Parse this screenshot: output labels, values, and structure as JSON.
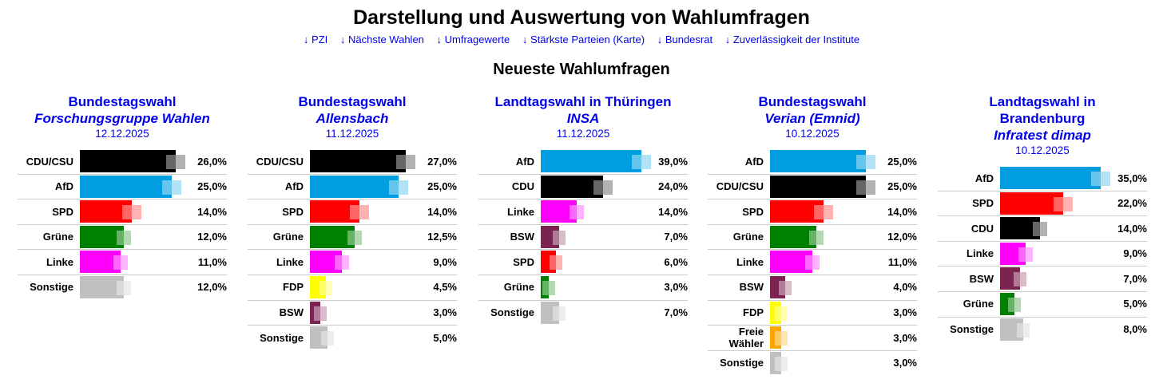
{
  "title": "Darstellung und Auswertung von Wahlumfragen",
  "nav": [
    "↓ PZI",
    "↓ Nächste Wahlen",
    "↓ Umfragewerte",
    "↓ Stärkste Parteien (Karte)",
    "↓ Bundesrat",
    "↓ Zuverlässigkeit der Institute"
  ],
  "subtitle": "Neueste Wahlumfragen",
  "colors": {
    "CDU/CSU": "#000000",
    "CDU": "#000000",
    "AfD": "#009ee0",
    "SPD": "#ff0000",
    "Grüne": "#008000",
    "Linke": "#ff00ff",
    "BSW": "#7b2450",
    "FDP": "#ffff00",
    "Freie Wähler": "#ffa500",
    "Sonstige": "#c0c0c0"
  },
  "polls": [
    {
      "election": "Bundestagswahl",
      "institute": "Forschungsgruppe Wahlen",
      "date": "12.12.2025",
      "results": [
        [
          "CDU/CSU",
          26.0,
          "26,0%"
        ],
        [
          "AfD",
          25.0,
          "25,0%"
        ],
        [
          "SPD",
          14.0,
          "14,0%"
        ],
        [
          "Grüne",
          12.0,
          "12,0%"
        ],
        [
          "Linke",
          11.0,
          "11,0%"
        ],
        [
          "Sonstige",
          12.0,
          "12,0%"
        ]
      ]
    },
    {
      "election": "Bundestagswahl",
      "institute": "Allensbach",
      "date": "11.12.2025",
      "results": [
        [
          "CDU/CSU",
          27.0,
          "27,0%"
        ],
        [
          "AfD",
          25.0,
          "25,0%"
        ],
        [
          "SPD",
          14.0,
          "14,0%"
        ],
        [
          "Grüne",
          12.5,
          "12,5%"
        ],
        [
          "Linke",
          9.0,
          "9,0%"
        ],
        [
          "FDP",
          4.5,
          "4,5%"
        ],
        [
          "BSW",
          3.0,
          "3,0%"
        ],
        [
          "Sonstige",
          5.0,
          "5,0%"
        ]
      ]
    },
    {
      "election": "Landtagswahl in Thüringen",
      "institute": "INSA",
      "date": "11.12.2025",
      "results": [
        [
          "AfD",
          39.0,
          "39,0%"
        ],
        [
          "CDU",
          24.0,
          "24,0%"
        ],
        [
          "Linke",
          14.0,
          "14,0%"
        ],
        [
          "BSW",
          7.0,
          "7,0%"
        ],
        [
          "SPD",
          6.0,
          "6,0%"
        ],
        [
          "Grüne",
          3.0,
          "3,0%"
        ],
        [
          "Sonstige",
          7.0,
          "7,0%"
        ]
      ]
    },
    {
      "election": "Bundestagswahl",
      "institute": "Verian (Emnid)",
      "date": "10.12.2025",
      "results": [
        [
          "AfD",
          25.0,
          "25,0%"
        ],
        [
          "CDU/CSU",
          25.0,
          "25,0%"
        ],
        [
          "SPD",
          14.0,
          "14,0%"
        ],
        [
          "Grüne",
          12.0,
          "12,0%"
        ],
        [
          "Linke",
          11.0,
          "11,0%"
        ],
        [
          "BSW",
          4.0,
          "4,0%"
        ],
        [
          "FDP",
          3.0,
          "3,0%"
        ],
        [
          "Freie Wähler",
          3.0,
          "3,0%"
        ],
        [
          "Sonstige",
          3.0,
          "3,0%"
        ]
      ]
    },
    {
      "election": "Landtagswahl in Brandenburg",
      "institute": "Infratest dimap",
      "date": "10.12.2025",
      "results": [
        [
          "AfD",
          35.0,
          "35,0%"
        ],
        [
          "SPD",
          22.0,
          "22,0%"
        ],
        [
          "CDU",
          14.0,
          "14,0%"
        ],
        [
          "Linke",
          9.0,
          "9,0%"
        ],
        [
          "BSW",
          7.0,
          "7,0%"
        ],
        [
          "Grüne",
          5.0,
          "5,0%"
        ],
        [
          "Sonstige",
          8.0,
          "8,0%"
        ]
      ]
    }
  ]
}
